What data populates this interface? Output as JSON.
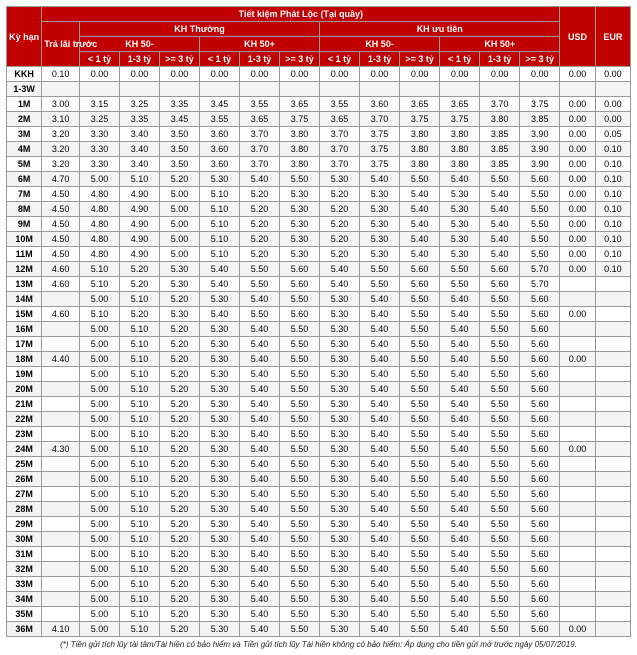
{
  "title": "Tiết kiệm Phát Lộc (Tại quầy)",
  "headers": {
    "term": "Kỳ hạn",
    "advance": "Trả lãi trước",
    "group_regular": "KH Thường",
    "group_priority": "KH ưu tiên",
    "sub_kh50minus": "KH 50-",
    "sub_kh50plus": "KH 50+",
    "tier_lt1": "< 1 tỷ",
    "tier_1_3": "1-3 tỷ",
    "tier_gte3": ">= 3 tỷ",
    "usd": "USD",
    "eur": "EUR"
  },
  "footnote": "(*) Tiền gửi tích lũy tài tâm/Tài hiền có bảo hiểm và Tiền gửi tích lũy Tài hiền không có bảo hiểm: Áp dụng cho tiền gửi mở trước ngày 05/07/2019.",
  "rows": [
    {
      "term": "KKH",
      "adv": "0.10",
      "v": [
        "0.00",
        "0.00",
        "0.00",
        "0.00",
        "0.00",
        "0.00",
        "0.00",
        "0.00",
        "0.00",
        "0.00",
        "0.00",
        "0.00"
      ],
      "usd": "0.00",
      "eur": "0.00"
    },
    {
      "term": "1-3W",
      "adv": "",
      "v": [
        "",
        "",
        "",
        "",
        "",
        "",
        "",
        "",
        "",
        "",
        "",
        ""
      ],
      "usd": "",
      "eur": ""
    },
    {
      "term": "1M",
      "adv": "3.00",
      "v": [
        "3.15",
        "3.25",
        "3.35",
        "3.45",
        "3.55",
        "3.65",
        "3.55",
        "3.60",
        "3.65",
        "3.65",
        "3.70",
        "3.75"
      ],
      "usd": "0.00",
      "eur": "0.00"
    },
    {
      "term": "2M",
      "adv": "3.10",
      "v": [
        "3.25",
        "3.35",
        "3.45",
        "3.55",
        "3.65",
        "3.75",
        "3.65",
        "3.70",
        "3.75",
        "3.75",
        "3.80",
        "3.85"
      ],
      "usd": "0.00",
      "eur": "0.00"
    },
    {
      "term": "3M",
      "adv": "3.20",
      "v": [
        "3.30",
        "3.40",
        "3.50",
        "3.60",
        "3.70",
        "3.80",
        "3.70",
        "3.75",
        "3.80",
        "3.80",
        "3.85",
        "3.90"
      ],
      "usd": "0.00",
      "eur": "0.05"
    },
    {
      "term": "4M",
      "adv": "3.20",
      "v": [
        "3.30",
        "3.40",
        "3.50",
        "3.60",
        "3.70",
        "3.80",
        "3.70",
        "3.75",
        "3.80",
        "3.80",
        "3.85",
        "3.90"
      ],
      "usd": "0.00",
      "eur": "0.10"
    },
    {
      "term": "5M",
      "adv": "3.20",
      "v": [
        "3.30",
        "3.40",
        "3.50",
        "3.60",
        "3.70",
        "3.80",
        "3.70",
        "3.75",
        "3.80",
        "3.80",
        "3.85",
        "3.90"
      ],
      "usd": "0.00",
      "eur": "0.10"
    },
    {
      "term": "6M",
      "adv": "4.70",
      "v": [
        "5.00",
        "5.10",
        "5.20",
        "5.30",
        "5.40",
        "5.50",
        "5.30",
        "5.40",
        "5.50",
        "5.40",
        "5.50",
        "5.60"
      ],
      "usd": "0.00",
      "eur": "0.10"
    },
    {
      "term": "7M",
      "adv": "4.50",
      "v": [
        "4.80",
        "4.90",
        "5.00",
        "5.10",
        "5.20",
        "5.30",
        "5.20",
        "5.30",
        "5.40",
        "5.30",
        "5.40",
        "5.50"
      ],
      "usd": "0.00",
      "eur": "0.10"
    },
    {
      "term": "8M",
      "adv": "4.50",
      "v": [
        "4.80",
        "4.90",
        "5.00",
        "5.10",
        "5.20",
        "5.30",
        "5.20",
        "5.30",
        "5.40",
        "5.30",
        "5.40",
        "5.50"
      ],
      "usd": "0.00",
      "eur": "0.10"
    },
    {
      "term": "9M",
      "adv": "4.50",
      "v": [
        "4.80",
        "4.90",
        "5.00",
        "5.10",
        "5.20",
        "5.30",
        "5.20",
        "5.30",
        "5.40",
        "5.30",
        "5.40",
        "5.50"
      ],
      "usd": "0.00",
      "eur": "0.10"
    },
    {
      "term": "10M",
      "adv": "4.50",
      "v": [
        "4.80",
        "4.90",
        "5.00",
        "5.10",
        "5.20",
        "5.30",
        "5.20",
        "5.30",
        "5.40",
        "5.30",
        "5.40",
        "5.50"
      ],
      "usd": "0.00",
      "eur": "0.10"
    },
    {
      "term": "11M",
      "adv": "4.50",
      "v": [
        "4.80",
        "4.90",
        "5.00",
        "5.10",
        "5.20",
        "5.30",
        "5.20",
        "5.30",
        "5.40",
        "5.30",
        "5.40",
        "5.50"
      ],
      "usd": "0.00",
      "eur": "0.10"
    },
    {
      "term": "12M",
      "adv": "4.60",
      "v": [
        "5.10",
        "5.20",
        "5.30",
        "5.40",
        "5.50",
        "5.60",
        "5.40",
        "5.50",
        "5.60",
        "5.50",
        "5.60",
        "5.70"
      ],
      "usd": "0.00",
      "eur": "0.10"
    },
    {
      "term": "13M",
      "adv": "4.60",
      "v": [
        "5.10",
        "5.20",
        "5.30",
        "5.40",
        "5.50",
        "5.60",
        "5.40",
        "5.50",
        "5.60",
        "5.50",
        "5.60",
        "5.70"
      ],
      "usd": "",
      "eur": ""
    },
    {
      "term": "14M",
      "adv": "",
      "v": [
        "5.00",
        "5.10",
        "5.20",
        "5.30",
        "5.40",
        "5.50",
        "5.30",
        "5.40",
        "5.50",
        "5.40",
        "5.50",
        "5.60"
      ],
      "usd": "",
      "eur": ""
    },
    {
      "term": "15M",
      "adv": "4.60",
      "v": [
        "5.10",
        "5.20",
        "5.30",
        "5.40",
        "5.50",
        "5.60",
        "5.30",
        "5.40",
        "5.50",
        "5.40",
        "5.50",
        "5.60"
      ],
      "usd": "0.00",
      "eur": ""
    },
    {
      "term": "16M",
      "adv": "",
      "v": [
        "5.00",
        "5.10",
        "5.20",
        "5.30",
        "5.40",
        "5.50",
        "5.30",
        "5.40",
        "5.50",
        "5.40",
        "5.50",
        "5.60"
      ],
      "usd": "",
      "eur": ""
    },
    {
      "term": "17M",
      "adv": "",
      "v": [
        "5.00",
        "5.10",
        "5.20",
        "5.30",
        "5.40",
        "5.50",
        "5.30",
        "5.40",
        "5.50",
        "5.40",
        "5.50",
        "5.60"
      ],
      "usd": "",
      "eur": ""
    },
    {
      "term": "18M",
      "adv": "4.40",
      "v": [
        "5.00",
        "5.10",
        "5.20",
        "5.30",
        "5.40",
        "5.50",
        "5.30",
        "5.40",
        "5.50",
        "5.40",
        "5.50",
        "5.60"
      ],
      "usd": "0.00",
      "eur": ""
    },
    {
      "term": "19M",
      "adv": "",
      "v": [
        "5.00",
        "5.10",
        "5.20",
        "5.30",
        "5.40",
        "5.50",
        "5.30",
        "5.40",
        "5.50",
        "5.40",
        "5.50",
        "5.60"
      ],
      "usd": "",
      "eur": ""
    },
    {
      "term": "20M",
      "adv": "",
      "v": [
        "5.00",
        "5.10",
        "5.20",
        "5.30",
        "5.40",
        "5.50",
        "5.30",
        "5.40",
        "5.50",
        "5.40",
        "5.50",
        "5.60"
      ],
      "usd": "",
      "eur": ""
    },
    {
      "term": "21M",
      "adv": "",
      "v": [
        "5.00",
        "5.10",
        "5.20",
        "5.30",
        "5.40",
        "5.50",
        "5.30",
        "5.40",
        "5.50",
        "5.40",
        "5.50",
        "5.60"
      ],
      "usd": "",
      "eur": ""
    },
    {
      "term": "22M",
      "adv": "",
      "v": [
        "5.00",
        "5.10",
        "5.20",
        "5.30",
        "5.40",
        "5.50",
        "5.30",
        "5.40",
        "5.50",
        "5.40",
        "5.50",
        "5.60"
      ],
      "usd": "",
      "eur": ""
    },
    {
      "term": "23M",
      "adv": "",
      "v": [
        "5.00",
        "5.10",
        "5.20",
        "5.30",
        "5.40",
        "5.50",
        "5.30",
        "5.40",
        "5.50",
        "5.40",
        "5.50",
        "5.60"
      ],
      "usd": "",
      "eur": ""
    },
    {
      "term": "24M",
      "adv": "4.30",
      "v": [
        "5.00",
        "5.10",
        "5.20",
        "5.30",
        "5.40",
        "5.50",
        "5.30",
        "5.40",
        "5.50",
        "5.40",
        "5.50",
        "5.60"
      ],
      "usd": "0.00",
      "eur": ""
    },
    {
      "term": "25M",
      "adv": "",
      "v": [
        "5.00",
        "5.10",
        "5.20",
        "5.30",
        "5.40",
        "5.50",
        "5.30",
        "5.40",
        "5.50",
        "5.40",
        "5.50",
        "5.60"
      ],
      "usd": "",
      "eur": ""
    },
    {
      "term": "26M",
      "adv": "",
      "v": [
        "5.00",
        "5.10",
        "5.20",
        "5.30",
        "5.40",
        "5.50",
        "5.30",
        "5.40",
        "5.50",
        "5.40",
        "5.50",
        "5.60"
      ],
      "usd": "",
      "eur": ""
    },
    {
      "term": "27M",
      "adv": "",
      "v": [
        "5.00",
        "5.10",
        "5.20",
        "5.30",
        "5.40",
        "5.50",
        "5.30",
        "5.40",
        "5.50",
        "5.40",
        "5.50",
        "5.60"
      ],
      "usd": "",
      "eur": ""
    },
    {
      "term": "28M",
      "adv": "",
      "v": [
        "5.00",
        "5.10",
        "5.20",
        "5.30",
        "5.40",
        "5.50",
        "5.30",
        "5.40",
        "5.50",
        "5.40",
        "5.50",
        "5.60"
      ],
      "usd": "",
      "eur": ""
    },
    {
      "term": "29M",
      "adv": "",
      "v": [
        "5.00",
        "5.10",
        "5.20",
        "5.30",
        "5.40",
        "5.50",
        "5.30",
        "5.40",
        "5.50",
        "5.40",
        "5.50",
        "5.60"
      ],
      "usd": "",
      "eur": ""
    },
    {
      "term": "30M",
      "adv": "",
      "v": [
        "5.00",
        "5.10",
        "5.20",
        "5.30",
        "5.40",
        "5.50",
        "5.30",
        "5.40",
        "5.50",
        "5.40",
        "5.50",
        "5.60"
      ],
      "usd": "",
      "eur": ""
    },
    {
      "term": "31M",
      "adv": "",
      "v": [
        "5.00",
        "5.10",
        "5.20",
        "5.30",
        "5.40",
        "5.50",
        "5.30",
        "5.40",
        "5.50",
        "5.40",
        "5.50",
        "5.60"
      ],
      "usd": "",
      "eur": ""
    },
    {
      "term": "32M",
      "adv": "",
      "v": [
        "5.00",
        "5.10",
        "5.20",
        "5.30",
        "5.40",
        "5.50",
        "5.30",
        "5.40",
        "5.50",
        "5.40",
        "5.50",
        "5.60"
      ],
      "usd": "",
      "eur": ""
    },
    {
      "term": "33M",
      "adv": "",
      "v": [
        "5.00",
        "5.10",
        "5.20",
        "5.30",
        "5.40",
        "5.50",
        "5.30",
        "5.40",
        "5.50",
        "5.40",
        "5.50",
        "5.60"
      ],
      "usd": "",
      "eur": ""
    },
    {
      "term": "34M",
      "adv": "",
      "v": [
        "5.00",
        "5.10",
        "5.20",
        "5.30",
        "5.40",
        "5.50",
        "5.30",
        "5.40",
        "5.50",
        "5.40",
        "5.50",
        "5.60"
      ],
      "usd": "",
      "eur": ""
    },
    {
      "term": "35M",
      "adv": "",
      "v": [
        "5.00",
        "5.10",
        "5.20",
        "5.30",
        "5.40",
        "5.50",
        "5.30",
        "5.40",
        "5.50",
        "5.40",
        "5.50",
        "5.60"
      ],
      "usd": "",
      "eur": ""
    },
    {
      "term": "36M",
      "adv": "4.10",
      "v": [
        "5.00",
        "5.10",
        "5.20",
        "5.30",
        "5.40",
        "5.50",
        "5.30",
        "5.40",
        "5.50",
        "5.40",
        "5.50",
        "5.60"
      ],
      "usd": "0.00",
      "eur": ""
    }
  ]
}
